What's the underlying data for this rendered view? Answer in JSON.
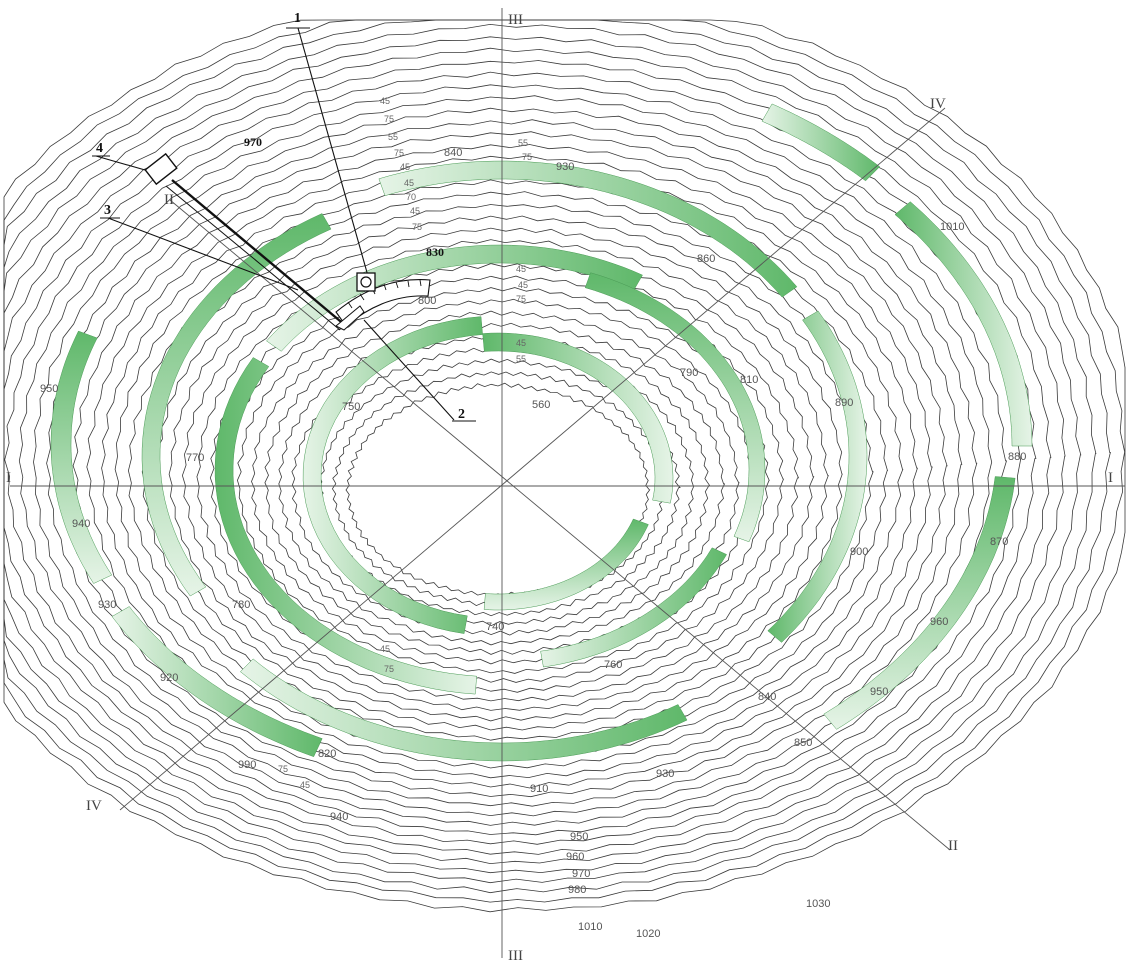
{
  "colors": {
    "band_dark": "#5fb86a",
    "band_light": "#e6f4e7",
    "contour": "#3a3a3a",
    "axis": "#555555",
    "callout": "#111111"
  },
  "axes": {
    "I": "I",
    "II": "II",
    "III": "III",
    "IV": "IV"
  },
  "callouts": [
    "1",
    "2",
    "3",
    "4"
  ],
  "equipment": {
    "excavator_icon": "excavator-icon",
    "belt_head_icon": "conveyor-head-icon"
  },
  "elevations": {
    "e970": "970",
    "e830": "830",
    "e800": "800",
    "e840": "840",
    "e930_top": "930",
    "e560": "560",
    "e950": "950",
    "e940": "940",
    "e930_left": "930",
    "e920": "920",
    "e860": "860",
    "e900": "900",
    "e880": "880",
    "e870": "870",
    "e960_right": "960",
    "e950_right": "950",
    "e1010": "1010",
    "e910": "910",
    "e930_bottom": "930",
    "e950_bottom": "950",
    "e960": "960",
    "e970_bottom": "970",
    "e980": "980",
    "e1010_bottom": "1010",
    "e1020": "1020",
    "e1030": "1030",
    "e990_left": "990",
    "e940_left": "940",
    "e820": "820",
    "e760": "760",
    "e740": "740",
    "e810": "810",
    "e790": "790",
    "e780": "780",
    "e770": "770",
    "e750": "750",
    "e840_low": "840",
    "e850": "850",
    "e890": "890"
  },
  "bench_marks": [
    "45",
    "75",
    "55",
    "75",
    "45",
    "45",
    "70",
    "45",
    "75",
    "55",
    "75",
    "45",
    "45",
    "75",
    "45",
    "55",
    "45",
    "75",
    "75",
    "45"
  ]
}
